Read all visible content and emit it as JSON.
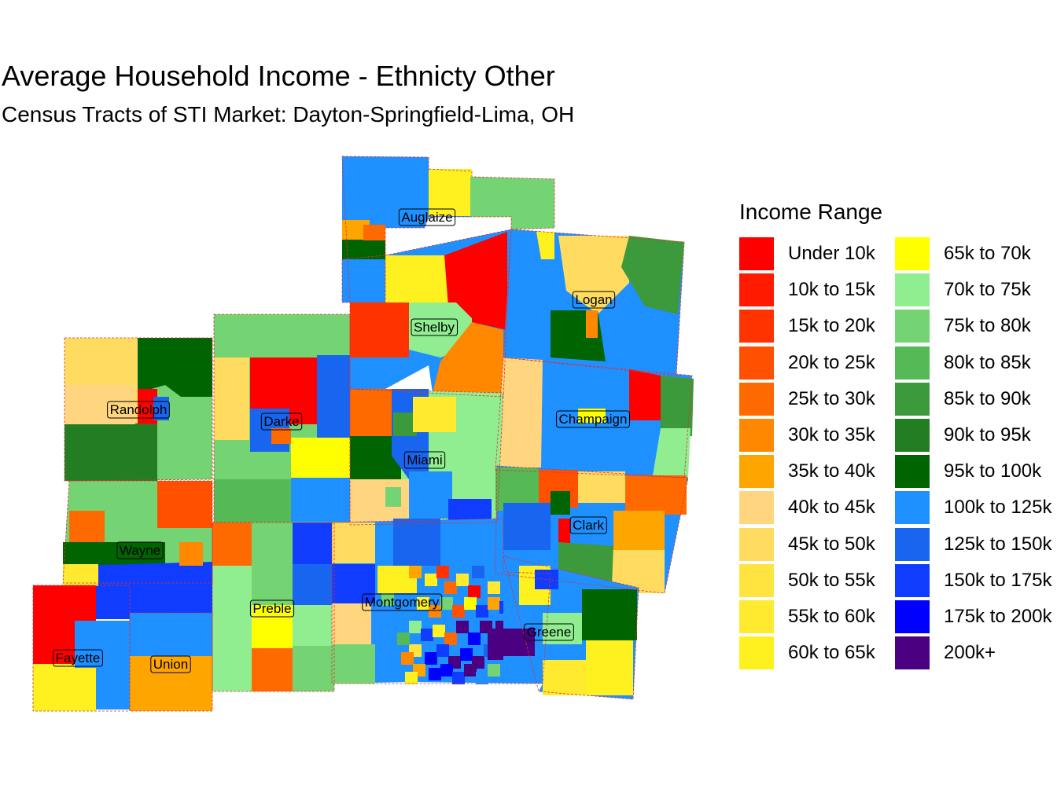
{
  "title": "Average Household Income - Ethnicty Other",
  "subtitle": "Census Tracts of STI Market: Dayton-Springfield-Lima, OH",
  "legend": {
    "title": "Income Range",
    "items": [
      {
        "label": "Under 10k",
        "color": "#ff0000"
      },
      {
        "label": "10k to 15k",
        "color": "#ff1a00"
      },
      {
        "label": "15k to 20k",
        "color": "#ff3300"
      },
      {
        "label": "20k to 25k",
        "color": "#ff5000"
      },
      {
        "label": "25k to 30k",
        "color": "#ff6a00"
      },
      {
        "label": "30k to 35k",
        "color": "#ff8800"
      },
      {
        "label": "35k to 40k",
        "color": "#ffa500"
      },
      {
        "label": "40k to 45k",
        "color": "#ffd580"
      },
      {
        "label": "45k to 50k",
        "color": "#ffdc60"
      },
      {
        "label": "50k to 55k",
        "color": "#ffe440"
      },
      {
        "label": "55k to 60k",
        "color": "#ffea30"
      },
      {
        "label": "60k to 65k",
        "color": "#fff020"
      },
      {
        "label": "65k to 70k",
        "color": "#ffff00"
      },
      {
        "label": "70k to 75k",
        "color": "#90ee90"
      },
      {
        "label": "75k to 80k",
        "color": "#74d474"
      },
      {
        "label": "80k to 85k",
        "color": "#55b955"
      },
      {
        "label": "85k to 90k",
        "color": "#3c9a3c"
      },
      {
        "label": "90k to 95k",
        "color": "#237d23"
      },
      {
        "label": "95k to 100k",
        "color": "#006400"
      },
      {
        "label": "100k to 125k",
        "color": "#1e90ff"
      },
      {
        "label": "125k to 150k",
        "color": "#1865f0"
      },
      {
        "label": "150k to 175k",
        "color": "#0f3cff"
      },
      {
        "label": "175k to 200k",
        "color": "#0000ff"
      },
      {
        "label": "200k+",
        "color": "#4b0082"
      }
    ]
  },
  "counties": [
    {
      "name": "Auglaize",
      "category": "100k to 125k"
    },
    {
      "name": "Logan",
      "category": "85k to 90k"
    },
    {
      "name": "Shelby",
      "category": "100k to 125k"
    },
    {
      "name": "Randolph",
      "category": "45k to 50k"
    },
    {
      "name": "Darke",
      "category": "75k to 80k"
    },
    {
      "name": "Champaign",
      "category": "100k to 125k"
    },
    {
      "name": "Miami",
      "category": "70k to 75k"
    },
    {
      "name": "Clark",
      "category": "35k to 40k"
    },
    {
      "name": "Wayne",
      "category": "75k to 80k"
    },
    {
      "name": "Preble",
      "category": "75k to 80k"
    },
    {
      "name": "Montgomery",
      "category": "100k to 125k"
    },
    {
      "name": "Greene",
      "category": "100k to 125k"
    },
    {
      "name": "Fayette",
      "category": "Under 10k"
    },
    {
      "name": "Union",
      "category": "35k to 40k"
    }
  ]
}
